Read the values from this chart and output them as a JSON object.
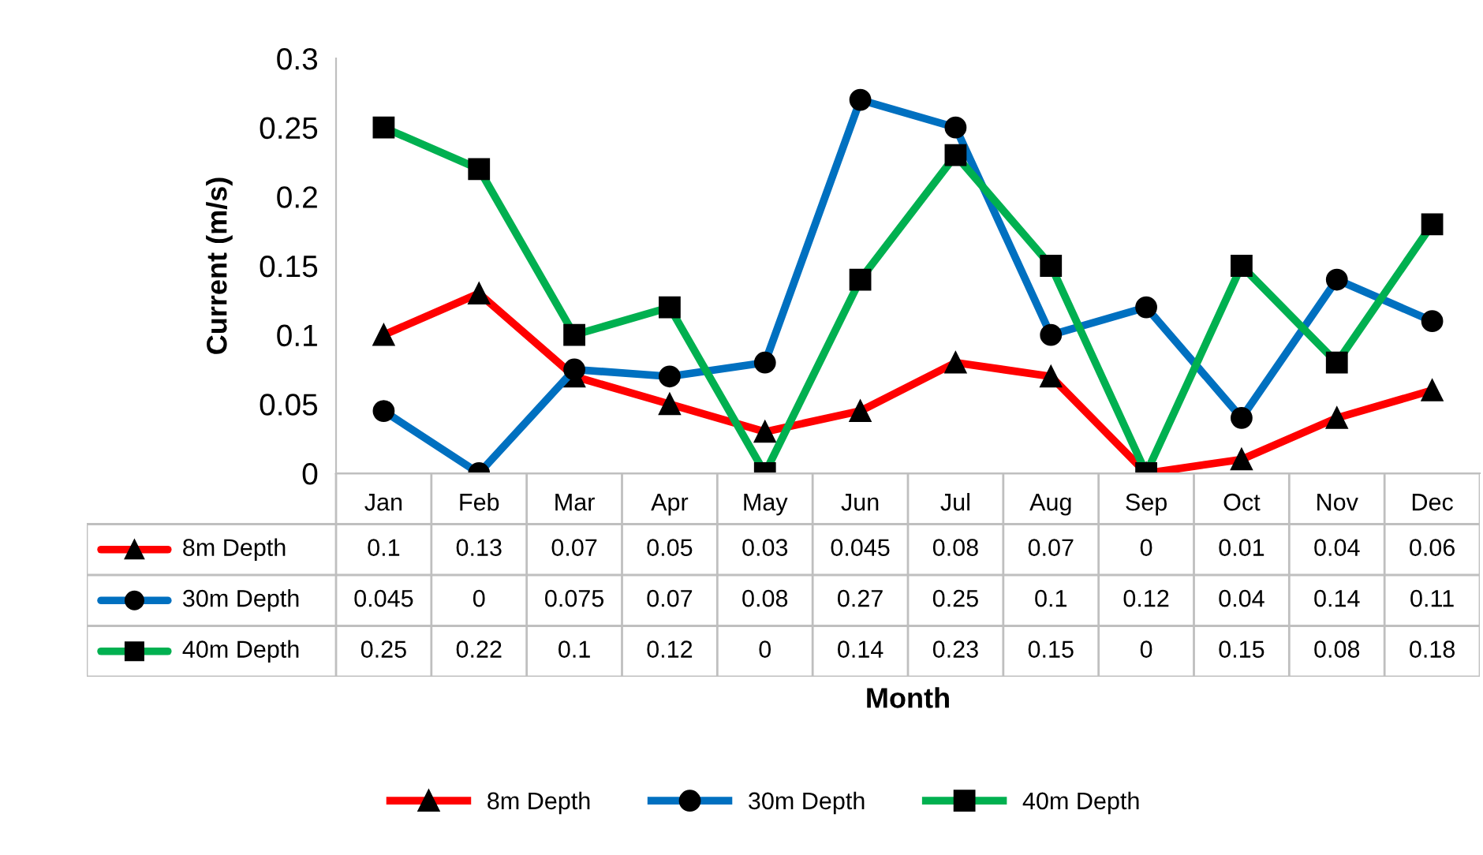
{
  "chart_data": {
    "type": "line",
    "ylabel": "Current (m/s)",
    "annotations": [
      "Month"
    ],
    "categories": [
      "Jan",
      "Feb",
      "Mar",
      "Apr",
      "May",
      "Jun",
      "Jul",
      "Aug",
      "Sep",
      "Oct",
      "Nov",
      "Dec"
    ],
    "series": [
      {
        "name": "8m Depth",
        "color": "#ff0000",
        "marker": "triangle",
        "values": [
          0.1,
          0.13,
          0.07,
          0.05,
          0.03,
          0.045,
          0.08,
          0.07,
          0,
          0.01,
          0.04,
          0.06
        ]
      },
      {
        "name": "30m Depth",
        "color": "#0070c0",
        "marker": "circle",
        "values": [
          0.045,
          0,
          0.075,
          0.07,
          0.08,
          0.27,
          0.25,
          0.1,
          0.12,
          0.04,
          0.14,
          0.11
        ]
      },
      {
        "name": "40m Depth",
        "color": "#00b050",
        "marker": "square",
        "values": [
          0.25,
          0.22,
          0.1,
          0.12,
          0,
          0.14,
          0.23,
          0.15,
          0,
          0.15,
          0.08,
          0.18
        ]
      }
    ],
    "ylim": [
      0,
      0.3
    ],
    "yticks": [
      0,
      0.05,
      0.1,
      0.15,
      0.2,
      0.25,
      0.3
    ],
    "data_labels": true,
    "legend": "bottom",
    "grid": false,
    "line_style": "solid"
  }
}
